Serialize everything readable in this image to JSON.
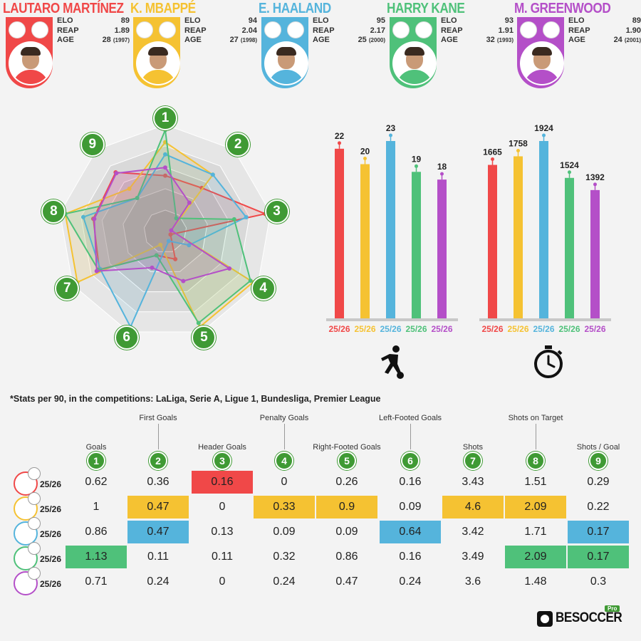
{
  "players": [
    {
      "name": "LAUTARO MARTÍNEZ",
      "color": "#f04848",
      "elo": "89",
      "reap": "1.89",
      "age": "28",
      "born": "(1997)",
      "season": "25/26"
    },
    {
      "name": "K. MBAPPÉ",
      "color": "#f5c232",
      "elo": "94",
      "reap": "2.04",
      "age": "27",
      "born": "(1998)",
      "season": "25/26"
    },
    {
      "name": "E. HAALAND",
      "color": "#55b4dc",
      "elo": "95",
      "reap": "2.17",
      "age": "25",
      "born": "(2000)",
      "season": "25/26"
    },
    {
      "name": "HARRY KANE",
      "color": "#4fc17a",
      "elo": "93",
      "reap": "1.91",
      "age": "32",
      "born": "(1993)",
      "season": "25/26"
    },
    {
      "name": "M. GREENWOOD",
      "color": "#b44fc8",
      "elo": "89",
      "reap": "1.90",
      "age": "24",
      "born": "(2001)",
      "season": "25/26"
    }
  ],
  "labels": {
    "elo": "ELO",
    "reap": "REAP",
    "age": "AGE"
  },
  "icons": {
    "goals_chart": "football-player-icon",
    "minutes_chart": "stopwatch-icon",
    "logo": "besoccer-pro-logo"
  },
  "colors": {
    "accent_green": "#3f9a34"
  },
  "radar_axes": [
    "1",
    "2",
    "3",
    "4",
    "5",
    "6",
    "7",
    "8",
    "9"
  ],
  "note": "*Stats per 90, in the competitions: LaLiga, Serie A, Ligue 1, Bundesliga, Premier League",
  "table": {
    "columns": [
      {
        "num": "1",
        "title": "Goals"
      },
      {
        "num": "2",
        "title": "First Goals"
      },
      {
        "num": "3",
        "title": "Header Goals"
      },
      {
        "num": "4",
        "title": "Penalty Goals"
      },
      {
        "num": "5",
        "title": "Right-Footed Goals"
      },
      {
        "num": "6",
        "title": "Left-Footed Goals"
      },
      {
        "num": "7",
        "title": "Shots"
      },
      {
        "num": "8",
        "title": "Shots on Target"
      },
      {
        "num": "9",
        "title": "Shots / Goal"
      }
    ],
    "rows": [
      {
        "season": "25/26",
        "values": [
          "0.62",
          "0.36",
          "0.16",
          "0",
          "0.26",
          "0.16",
          "3.43",
          "1.51",
          "0.29"
        ],
        "best": [
          2
        ]
      },
      {
        "season": "25/26",
        "values": [
          "1",
          "0.47",
          "0",
          "0.33",
          "0.9",
          "0.09",
          "4.6",
          "2.09",
          "0.22"
        ],
        "best": [
          1,
          3,
          4,
          6,
          7
        ]
      },
      {
        "season": "25/26",
        "values": [
          "0.86",
          "0.47",
          "0.13",
          "0.09",
          "0.09",
          "0.64",
          "3.42",
          "1.71",
          "0.17"
        ],
        "best": [
          1,
          5,
          8
        ]
      },
      {
        "season": "25/26",
        "values": [
          "1.13",
          "0.11",
          "0.11",
          "0.32",
          "0.86",
          "0.16",
          "3.49",
          "2.09",
          "0.17"
        ],
        "best": [
          0,
          7,
          8
        ]
      },
      {
        "season": "25/26",
        "values": [
          "0.71",
          "0.24",
          "0",
          "0.24",
          "0.47",
          "0.24",
          "3.6",
          "1.48",
          "0.3"
        ],
        "best": []
      }
    ]
  },
  "chart_data": [
    {
      "type": "bar",
      "categories": [
        "25/26",
        "25/26",
        "25/26",
        "25/26",
        "25/26"
      ],
      "values": [
        22,
        20,
        23,
        19,
        18
      ],
      "title": "",
      "ylim": [
        0,
        23
      ]
    },
    {
      "type": "bar",
      "categories": [
        "25/26",
        "25/26",
        "25/26",
        "25/26",
        "25/26"
      ],
      "values": [
        1665,
        1758,
        1924,
        1524,
        1392
      ],
      "title": "",
      "ylim": [
        0,
        1924
      ]
    },
    {
      "type": "radar",
      "axes": [
        "1",
        "2",
        "3",
        "4",
        "5",
        "6",
        "7",
        "8",
        "9"
      ],
      "series": [
        {
          "values": [
            0.55,
            0.56,
            1.0,
            0.0,
            0.29,
            0.25,
            0.75,
            0.72,
            0.76
          ]
        },
        {
          "values": [
            0.88,
            0.73,
            0.0,
            1.0,
            1.0,
            0.14,
            1.0,
            1.0,
            0.55
          ]
        },
        {
          "values": [
            0.76,
            0.73,
            0.81,
            0.27,
            0.1,
            1.0,
            0.74,
            0.82,
            0.43
          ]
        },
        {
          "values": [
            1.0,
            0.17,
            0.69,
            0.97,
            0.96,
            0.25,
            0.76,
            1.0,
            0.43
          ]
        },
        {
          "values": [
            0.63,
            0.37,
            0.0,
            0.73,
            0.52,
            0.38,
            0.78,
            0.71,
            0.75
          ]
        }
      ]
    }
  ]
}
